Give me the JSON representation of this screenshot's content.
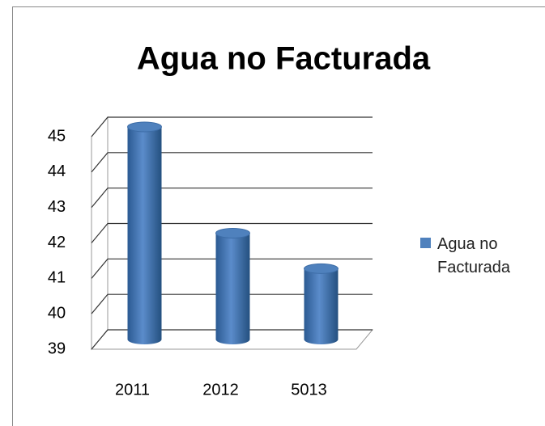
{
  "chart_data": {
    "type": "bar3d",
    "title": "Agua no Facturada",
    "categories": [
      "2011",
      "2012",
      "5013"
    ],
    "series": [
      {
        "name": "Agua no Facturada",
        "color": "#4f81bd",
        "values": [
          45,
          42,
          41
        ]
      }
    ],
    "ylim": [
      39,
      45
    ],
    "yticks": [
      39,
      40,
      41,
      42,
      43,
      44,
      45
    ],
    "grid": true,
    "legend": "right"
  }
}
